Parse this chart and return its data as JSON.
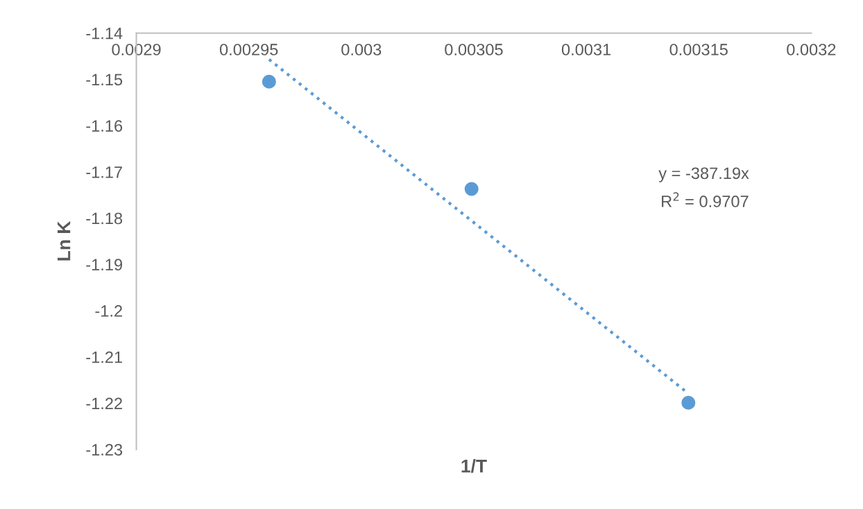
{
  "chart_data": {
    "type": "scatter",
    "xlabel": "1/T",
    "ylabel": "Ln K",
    "xlim": [
      0.0029,
      0.0032
    ],
    "xticks": [
      0.0029,
      0.00295,
      0.003,
      0.00305,
      0.0031,
      0.00315,
      0.0032
    ],
    "ylim": [
      -1.23,
      -1.14
    ],
    "yticks": [
      -1.23,
      -1.22,
      -1.21,
      -1.2,
      -1.19,
      -1.18,
      -1.17,
      -1.16,
      -1.15,
      -1.14
    ],
    "series": [
      {
        "color": "#5b9bd5",
        "marker": "circle",
        "x": [
          0.002959,
          0.003049,
          0.0031454
        ],
        "values": [
          -1.1505,
          -1.1737,
          -1.2199
        ]
      },
      {
        "type": "line",
        "color": "#5b9bd5",
        "line_style": "dotted",
        "marker": "none",
        "x": [
          0.002959,
          0.0031454
        ],
        "values": [
          -1.1457,
          -1.2179
        ]
      }
    ],
    "annotations": [
      "y = -387.19x",
      "R$^{2}$ = 0.9707"
    ],
    "grid": false,
    "legend": false
  }
}
